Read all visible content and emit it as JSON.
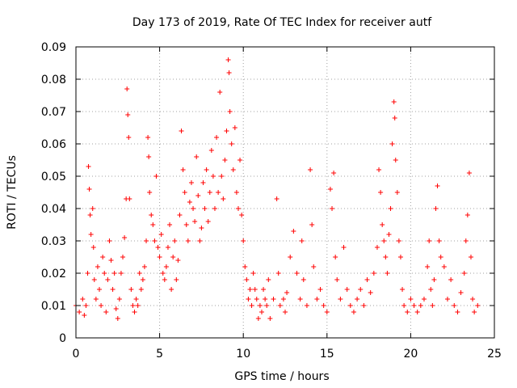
{
  "chart_data": {
    "type": "scatter",
    "title": "Day 173 of 2019, Rate Of TEC Index for receiver autf",
    "xlabel": "GPS time / hours",
    "ylabel": "ROTI / TECUs",
    "xlim": [
      0,
      25
    ],
    "ylim": [
      0,
      0.09
    ],
    "x_ticks": [
      "0",
      "5",
      "10",
      "15",
      "20",
      "25"
    ],
    "y_ticks": [
      "0",
      "0.01",
      "0.02",
      "0.03",
      "0.04",
      "0.05",
      "0.06",
      "0.07",
      "0.08",
      "0.09"
    ],
    "x_tick_values": [
      0,
      5,
      10,
      15,
      20,
      25
    ],
    "y_tick_values": [
      0,
      0.01,
      0.02,
      0.03,
      0.04,
      0.05,
      0.06,
      0.07,
      0.08,
      0.09
    ],
    "grid": true,
    "legend": "none",
    "marker": "plus",
    "color": "#ff0000",
    "series": [
      {
        "points": [
          [
            0.0,
            0.01
          ],
          [
            0.2,
            0.008
          ],
          [
            0.4,
            0.012
          ],
          [
            0.5,
            0.007
          ],
          [
            0.6,
            0.01
          ],
          [
            0.7,
            0.02
          ],
          [
            0.75,
            0.053
          ],
          [
            0.8,
            0.046
          ],
          [
            0.85,
            0.038
          ],
          [
            0.9,
            0.032
          ],
          [
            1.0,
            0.04
          ],
          [
            1.05,
            0.028
          ],
          [
            1.1,
            0.018
          ],
          [
            1.2,
            0.012
          ],
          [
            1.3,
            0.022
          ],
          [
            1.4,
            0.015
          ],
          [
            1.5,
            0.01
          ],
          [
            1.6,
            0.025
          ],
          [
            1.7,
            0.02
          ],
          [
            1.8,
            0.008
          ],
          [
            1.9,
            0.018
          ],
          [
            2.0,
            0.03
          ],
          [
            2.1,
            0.024
          ],
          [
            2.2,
            0.015
          ],
          [
            2.3,
            0.02
          ],
          [
            2.4,
            0.009
          ],
          [
            2.5,
            0.006
          ],
          [
            2.6,
            0.012
          ],
          [
            2.7,
            0.02
          ],
          [
            2.8,
            0.025
          ],
          [
            2.9,
            0.031
          ],
          [
            3.0,
            0.043
          ],
          [
            3.05,
            0.077
          ],
          [
            3.1,
            0.069
          ],
          [
            3.15,
            0.062
          ],
          [
            3.2,
            0.043
          ],
          [
            3.3,
            0.015
          ],
          [
            3.4,
            0.01
          ],
          [
            3.5,
            0.008
          ],
          [
            3.6,
            0.012
          ],
          [
            3.7,
            0.01
          ],
          [
            3.8,
            0.02
          ],
          [
            3.9,
            0.015
          ],
          [
            4.0,
            0.018
          ],
          [
            4.1,
            0.022
          ],
          [
            4.2,
            0.03
          ],
          [
            4.3,
            0.062
          ],
          [
            4.35,
            0.056
          ],
          [
            4.4,
            0.045
          ],
          [
            4.5,
            0.038
          ],
          [
            4.6,
            0.035
          ],
          [
            4.7,
            0.03
          ],
          [
            4.8,
            0.05
          ],
          [
            4.9,
            0.028
          ],
          [
            5.0,
            0.025
          ],
          [
            5.1,
            0.032
          ],
          [
            5.2,
            0.02
          ],
          [
            5.3,
            0.018
          ],
          [
            5.4,
            0.022
          ],
          [
            5.5,
            0.028
          ],
          [
            5.6,
            0.035
          ],
          [
            5.7,
            0.015
          ],
          [
            5.8,
            0.025
          ],
          [
            5.9,
            0.03
          ],
          [
            6.0,
            0.018
          ],
          [
            6.1,
            0.024
          ],
          [
            6.2,
            0.038
          ],
          [
            6.3,
            0.064
          ],
          [
            6.4,
            0.052
          ],
          [
            6.5,
            0.045
          ],
          [
            6.6,
            0.035
          ],
          [
            6.7,
            0.03
          ],
          [
            6.8,
            0.042
          ],
          [
            6.9,
            0.048
          ],
          [
            7.0,
            0.04
          ],
          [
            7.1,
            0.036
          ],
          [
            7.2,
            0.056
          ],
          [
            7.3,
            0.044
          ],
          [
            7.4,
            0.03
          ],
          [
            7.5,
            0.034
          ],
          [
            7.6,
            0.048
          ],
          [
            7.7,
            0.04
          ],
          [
            7.8,
            0.052
          ],
          [
            7.9,
            0.036
          ],
          [
            8.0,
            0.045
          ],
          [
            8.1,
            0.058
          ],
          [
            8.2,
            0.05
          ],
          [
            8.3,
            0.04
          ],
          [
            8.4,
            0.062
          ],
          [
            8.5,
            0.045
          ],
          [
            8.6,
            0.076
          ],
          [
            8.7,
            0.05
          ],
          [
            8.8,
            0.043
          ],
          [
            8.9,
            0.055
          ],
          [
            9.0,
            0.064
          ],
          [
            9.1,
            0.086
          ],
          [
            9.15,
            0.082
          ],
          [
            9.2,
            0.07
          ],
          [
            9.3,
            0.06
          ],
          [
            9.4,
            0.052
          ],
          [
            9.5,
            0.065
          ],
          [
            9.6,
            0.045
          ],
          [
            9.7,
            0.04
          ],
          [
            9.8,
            0.055
          ],
          [
            9.9,
            0.038
          ],
          [
            10.0,
            0.03
          ],
          [
            10.1,
            0.022
          ],
          [
            10.2,
            0.018
          ],
          [
            10.3,
            0.012
          ],
          [
            10.4,
            0.015
          ],
          [
            10.5,
            0.01
          ],
          [
            10.6,
            0.02
          ],
          [
            10.7,
            0.015
          ],
          [
            10.8,
            0.012
          ],
          [
            10.9,
            0.006
          ],
          [
            11.0,
            0.01
          ],
          [
            11.1,
            0.008
          ],
          [
            11.2,
            0.015
          ],
          [
            11.3,
            0.012
          ],
          [
            11.4,
            0.01
          ],
          [
            11.5,
            0.018
          ],
          [
            11.6,
            0.006
          ],
          [
            11.8,
            0.012
          ],
          [
            12.0,
            0.043
          ],
          [
            12.1,
            0.02
          ],
          [
            12.2,
            0.01
          ],
          [
            12.4,
            0.012
          ],
          [
            12.5,
            0.008
          ],
          [
            12.6,
            0.014
          ],
          [
            12.8,
            0.025
          ],
          [
            13.0,
            0.033
          ],
          [
            13.2,
            0.02
          ],
          [
            13.4,
            0.012
          ],
          [
            13.5,
            0.03
          ],
          [
            13.6,
            0.018
          ],
          [
            13.8,
            0.01
          ],
          [
            14.0,
            0.052
          ],
          [
            14.1,
            0.035
          ],
          [
            14.2,
            0.022
          ],
          [
            14.4,
            0.012
          ],
          [
            14.6,
            0.015
          ],
          [
            14.8,
            0.01
          ],
          [
            15.0,
            0.008
          ],
          [
            15.2,
            0.046
          ],
          [
            15.3,
            0.04
          ],
          [
            15.4,
            0.051
          ],
          [
            15.5,
            0.025
          ],
          [
            15.6,
            0.018
          ],
          [
            15.8,
            0.012
          ],
          [
            16.0,
            0.028
          ],
          [
            16.2,
            0.015
          ],
          [
            16.4,
            0.01
          ],
          [
            16.6,
            0.008
          ],
          [
            16.8,
            0.012
          ],
          [
            17.0,
            0.015
          ],
          [
            17.2,
            0.01
          ],
          [
            17.4,
            0.018
          ],
          [
            17.6,
            0.014
          ],
          [
            17.8,
            0.02
          ],
          [
            18.0,
            0.028
          ],
          [
            18.1,
            0.052
          ],
          [
            18.2,
            0.045
          ],
          [
            18.3,
            0.035
          ],
          [
            18.4,
            0.03
          ],
          [
            18.5,
            0.025
          ],
          [
            18.6,
            0.02
          ],
          [
            18.7,
            0.032
          ],
          [
            18.8,
            0.04
          ],
          [
            18.9,
            0.06
          ],
          [
            19.0,
            0.073
          ],
          [
            19.05,
            0.068
          ],
          [
            19.1,
            0.055
          ],
          [
            19.2,
            0.045
          ],
          [
            19.3,
            0.03
          ],
          [
            19.4,
            0.025
          ],
          [
            19.5,
            0.015
          ],
          [
            19.6,
            0.01
          ],
          [
            19.8,
            0.008
          ],
          [
            20.0,
            0.012
          ],
          [
            20.2,
            0.01
          ],
          [
            20.4,
            0.008
          ],
          [
            20.6,
            0.01
          ],
          [
            20.8,
            0.012
          ],
          [
            21.0,
            0.022
          ],
          [
            21.1,
            0.03
          ],
          [
            21.2,
            0.015
          ],
          [
            21.3,
            0.01
          ],
          [
            21.4,
            0.018
          ],
          [
            21.5,
            0.04
          ],
          [
            21.6,
            0.047
          ],
          [
            21.7,
            0.03
          ],
          [
            21.8,
            0.025
          ],
          [
            22.0,
            0.022
          ],
          [
            22.2,
            0.012
          ],
          [
            22.4,
            0.018
          ],
          [
            22.6,
            0.01
          ],
          [
            22.8,
            0.008
          ],
          [
            23.0,
            0.014
          ],
          [
            23.2,
            0.02
          ],
          [
            23.3,
            0.03
          ],
          [
            23.4,
            0.038
          ],
          [
            23.5,
            0.051
          ],
          [
            23.6,
            0.025
          ],
          [
            23.7,
            0.012
          ],
          [
            23.8,
            0.008
          ],
          [
            24.0,
            0.01
          ]
        ]
      }
    ]
  }
}
